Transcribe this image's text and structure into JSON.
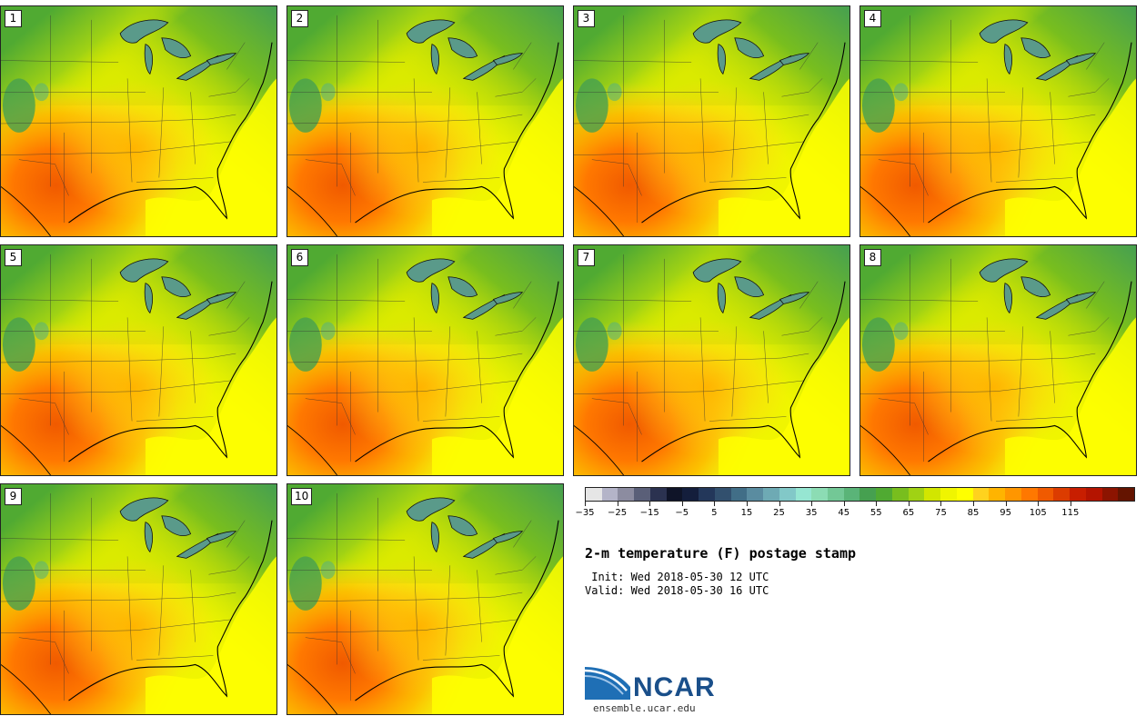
{
  "members": [
    {
      "label": "1"
    },
    {
      "label": "2"
    },
    {
      "label": "3"
    },
    {
      "label": "4"
    },
    {
      "label": "5"
    },
    {
      "label": "6"
    },
    {
      "label": "7"
    },
    {
      "label": "8"
    },
    {
      "label": "9"
    },
    {
      "label": "10"
    }
  ],
  "colorbar": {
    "colors": [
      "#e6e6e6",
      "#b4b4c8",
      "#8c8ca0",
      "#5a5f78",
      "#2b3250",
      "#0f1428",
      "#141e3c",
      "#23375a",
      "#32506e",
      "#416e87",
      "#5a8ca0",
      "#6eaab4",
      "#82c8c8",
      "#96e6d2",
      "#8cdcb4",
      "#73c896",
      "#5ab478",
      "#46a050",
      "#50aa32",
      "#78be1e",
      "#a0d214",
      "#d2e600",
      "#f0f500",
      "#ffff00",
      "#ffd21e",
      "#ffb400",
      "#ff9600",
      "#ff7800",
      "#f05a00",
      "#dc3c00",
      "#c81e00",
      "#b41400",
      "#8c1400",
      "#641400"
    ],
    "ticks": [
      "−35",
      "−25",
      "−15",
      "−5",
      "5",
      "15",
      "25",
      "35",
      "45",
      "55",
      "65",
      "75",
      "85",
      "95",
      "105",
      "115"
    ]
  },
  "title": "2-m temperature (F) postage stamp",
  "init_text": " Init: Wed 2018-05-30 12 UTC",
  "valid_text": "Valid: Wed 2018-05-30 16 UTC",
  "logo": {
    "name": "NCAR",
    "url": "ensemble.ucar.edu"
  }
}
